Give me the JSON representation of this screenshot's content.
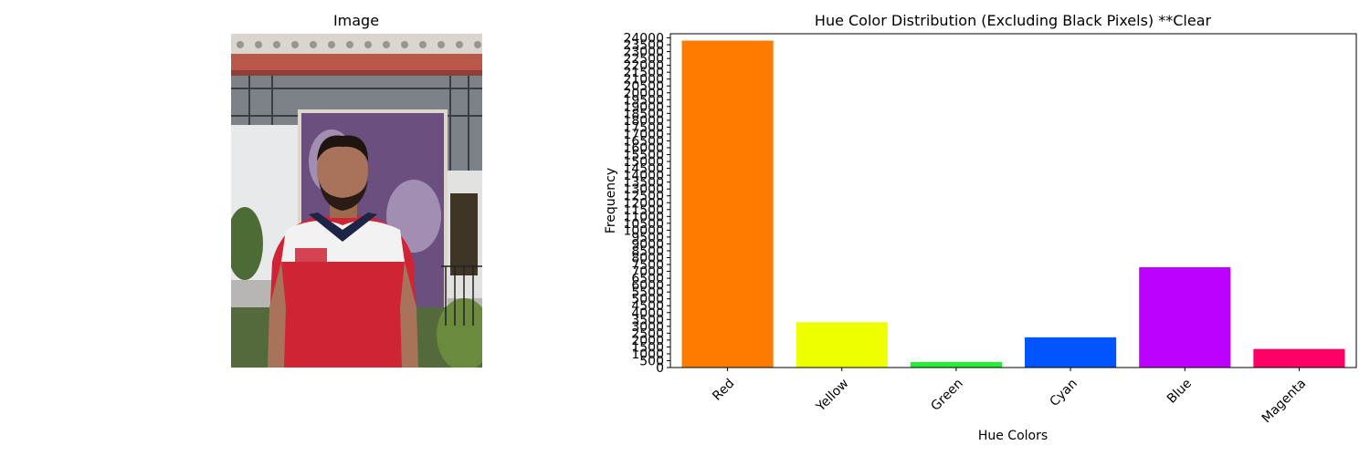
{
  "image_panel": {
    "title": "Image"
  },
  "chart_data": {
    "type": "bar",
    "title": "Hue Color Distribution (Excluding Black Pixels) **Clear",
    "xlabel": "Hue Colors",
    "ylabel": "Frequency",
    "categories": [
      "Red",
      "Yellow",
      "Green",
      "Cyan",
      "Blue",
      "Magenta"
    ],
    "values": [
      23800,
      3300,
      400,
      2200,
      7300,
      1350
    ],
    "colors": [
      "#ff7b00",
      "#eeff00",
      "#22ee33",
      "#0055ff",
      "#bb00ff",
      "#ff0066"
    ],
    "ylim": [
      0,
      24300
    ],
    "yticks": [
      0,
      500,
      1000,
      1500,
      2000,
      2500,
      3000,
      3500,
      4000,
      4500,
      5000,
      5500,
      6000,
      6500,
      7000,
      7500,
      8000,
      8500,
      9000,
      9500,
      10000,
      10500,
      11000,
      11500,
      12000,
      12500,
      13000,
      13500,
      14000,
      14500,
      15000,
      15500,
      16000,
      16500,
      17000,
      17500,
      18000,
      18500,
      19000,
      19500,
      20000,
      20500,
      21000,
      21500,
      22000,
      22500,
      23000,
      23500,
      24000
    ],
    "xtick_rotation": 45,
    "grid": false,
    "legend": "none"
  }
}
